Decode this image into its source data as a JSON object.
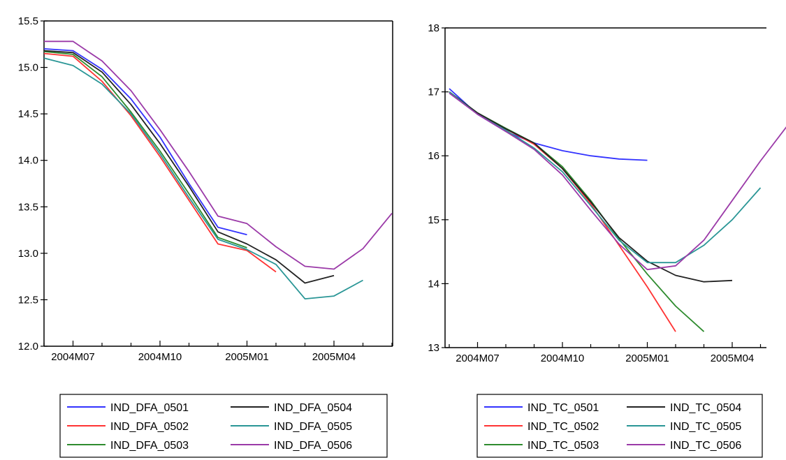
{
  "chart_data": [
    {
      "type": "line",
      "title": "",
      "xlabel": "",
      "ylabel": "",
      "x_tick_labels": [
        "2004M07",
        "2004M10",
        "2005M01",
        "2005M04"
      ],
      "y_tick_labels": [
        "12.0",
        "12.5",
        "13.0",
        "13.5",
        "14.0",
        "14.5",
        "15.0",
        "15.5"
      ],
      "ylim": [
        12.0,
        15.5
      ],
      "grid": false,
      "legend_position": "bottom",
      "series": [
        {
          "name": "IND_DFA_0501",
          "color": "#3333ff",
          "start_month": 0,
          "values": [
            15.2,
            15.18,
            14.98,
            14.66,
            14.25,
            13.75,
            13.28,
            13.2
          ]
        },
        {
          "name": "IND_DFA_0502",
          "color": "#ff3333",
          "start_month": 0,
          "values": [
            15.15,
            15.12,
            14.85,
            14.48,
            14.04,
            13.57,
            13.1,
            13.03,
            12.8
          ]
        },
        {
          "name": "IND_DFA_0503",
          "color": "#2e8b2e",
          "start_month": 0,
          "values": [
            15.17,
            15.14,
            14.9,
            14.52,
            14.1,
            13.64,
            13.17,
            13.06
          ]
        },
        {
          "name": "IND_DFA_0504",
          "color": "#222222",
          "start_month": 0,
          "values": [
            15.18,
            15.16,
            14.95,
            14.6,
            14.18,
            13.72,
            13.23,
            13.1,
            12.93,
            12.68,
            12.76
          ]
        },
        {
          "name": "IND_DFA_0505",
          "color": "#2a9696",
          "start_month": 0,
          "values": [
            15.1,
            15.02,
            14.82,
            14.5,
            14.07,
            13.6,
            13.15,
            13.04,
            12.88,
            12.51,
            12.54,
            12.71
          ]
        },
        {
          "name": "IND_DFA_0506",
          "color": "#9b3aa8",
          "start_month": 0,
          "values": [
            15.28,
            15.28,
            15.07,
            14.75,
            14.33,
            13.88,
            13.4,
            13.32,
            13.07,
            12.86,
            12.83,
            13.05,
            13.43
          ]
        }
      ]
    },
    {
      "type": "line",
      "title": "",
      "xlabel": "",
      "ylabel": "",
      "x_tick_labels": [
        "2004M07",
        "2004M10",
        "2005M01",
        "2005M04"
      ],
      "y_tick_labels": [
        "13",
        "14",
        "15",
        "16",
        "17",
        "18"
      ],
      "ylim": [
        13,
        18
      ],
      "grid": false,
      "legend_position": "bottom",
      "series": [
        {
          "name": "IND_TC_0501",
          "color": "#3333ff",
          "start_month": 0,
          "values": [
            17.05,
            16.65,
            16.38,
            16.2,
            16.08,
            16.0,
            15.95,
            15.93
          ]
        },
        {
          "name": "IND_TC_0502",
          "color": "#ff3333",
          "start_month": 0,
          "values": [
            17.0,
            16.66,
            16.42,
            16.18,
            15.8,
            15.25,
            14.6,
            13.95,
            13.25
          ]
        },
        {
          "name": "IND_TC_0503",
          "color": "#2e8b2e",
          "start_month": 0,
          "values": [
            17.0,
            16.67,
            16.43,
            16.2,
            15.83,
            15.3,
            14.7,
            14.15,
            13.65,
            13.25
          ]
        },
        {
          "name": "IND_TC_0504",
          "color": "#222222",
          "start_month": 0,
          "values": [
            17.0,
            16.67,
            16.42,
            16.2,
            15.8,
            15.28,
            14.72,
            14.35,
            14.13,
            14.03,
            14.05
          ]
        },
        {
          "name": "IND_TC_0505",
          "color": "#2a9696",
          "start_month": 0,
          "values": [
            17.0,
            16.65,
            16.4,
            16.12,
            15.75,
            15.22,
            14.68,
            14.33,
            14.33,
            14.6,
            15.0,
            15.5
          ]
        },
        {
          "name": "IND_TC_0506",
          "color": "#9b3aa8",
          "start_month": 0,
          "values": [
            16.98,
            16.65,
            16.38,
            16.1,
            15.7,
            15.15,
            14.62,
            14.22,
            14.28,
            14.68,
            15.3,
            15.92,
            16.5
          ]
        }
      ]
    }
  ]
}
